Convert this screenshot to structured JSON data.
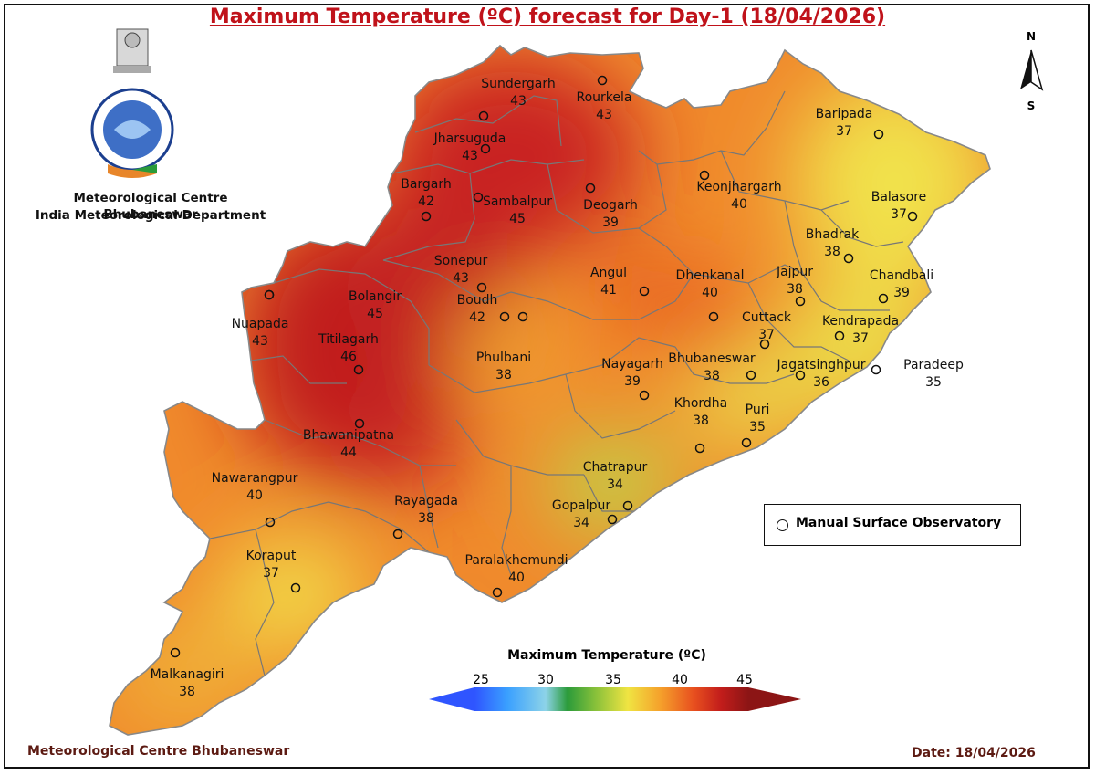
{
  "title": "Maximum Temperature (ºC) forecast for Day-1 (18/04/2026)",
  "organization": {
    "line1": "Meteorological Centre Bhubaneswar",
    "line2": "India Meteorological Department",
    "logo_text": "भारत मौसम विज्ञान विभाग"
  },
  "compass": {
    "north": "N",
    "south": "S"
  },
  "legend": {
    "observatory_label": "Manual Surface Observatory"
  },
  "colorbar": {
    "title": "Maximum Temperature (ºC)",
    "ticks": [
      "25",
      "30",
      "35",
      "40",
      "45"
    ],
    "colors": [
      "#2f55ff",
      "#3aa0ff",
      "#8dd3e8",
      "#2b9b3a",
      "#86c03a",
      "#f0e442",
      "#f5a02b",
      "#e8501f",
      "#c21d1b",
      "#8c1515"
    ]
  },
  "stations": [
    {
      "name": "Sundergarh",
      "temp": "43"
    },
    {
      "name": "Rourkela",
      "temp": "43"
    },
    {
      "name": "Jharsuguda",
      "temp": "43"
    },
    {
      "name": "Bargarh",
      "temp": "42"
    },
    {
      "name": "Sambalpur",
      "temp": "45"
    },
    {
      "name": "Deogarh",
      "temp": "39"
    },
    {
      "name": "Keonjhargarh",
      "temp": "40"
    },
    {
      "name": "Baripada",
      "temp": "37"
    },
    {
      "name": "Balasore",
      "temp": "37"
    },
    {
      "name": "Bhadrak",
      "temp": "38"
    },
    {
      "name": "Chandbali",
      "temp": "39"
    },
    {
      "name": "Sonepur",
      "temp": "43"
    },
    {
      "name": "Bolangir",
      "temp": "45"
    },
    {
      "name": "Boudh",
      "temp": "42"
    },
    {
      "name": "Angul",
      "temp": "41"
    },
    {
      "name": "Dhenkanal",
      "temp": "40"
    },
    {
      "name": "Jajpur",
      "temp": "38"
    },
    {
      "name": "Kendrapada",
      "temp": "37"
    },
    {
      "name": "Cuttack",
      "temp": "37"
    },
    {
      "name": "Nuapada",
      "temp": "43"
    },
    {
      "name": "Titilagarh",
      "temp": "46"
    },
    {
      "name": "Phulbani",
      "temp": "38"
    },
    {
      "name": "Nayagarh",
      "temp": "39"
    },
    {
      "name": "Bhubaneswar",
      "temp": "38"
    },
    {
      "name": "Jagatsinghpur",
      "temp": "36"
    },
    {
      "name": "Paradeep",
      "temp": "35"
    },
    {
      "name": "Khordha",
      "temp": "38"
    },
    {
      "name": "Puri",
      "temp": "35"
    },
    {
      "name": "Bhawanipatna",
      "temp": "44"
    },
    {
      "name": "Nawarangpur",
      "temp": "40"
    },
    {
      "name": "Chatrapur",
      "temp": "34"
    },
    {
      "name": "Gopalpur",
      "temp": "34"
    },
    {
      "name": "Rayagada",
      "temp": "38"
    },
    {
      "name": "Koraput",
      "temp": "37"
    },
    {
      "name": "Paralakhemundi",
      "temp": "40"
    },
    {
      "name": "Malkanagiri",
      "temp": "38"
    }
  ],
  "footer": {
    "left": "Meteorological Centre Bhubaneswar",
    "right": "Date: 18/04/2026"
  }
}
